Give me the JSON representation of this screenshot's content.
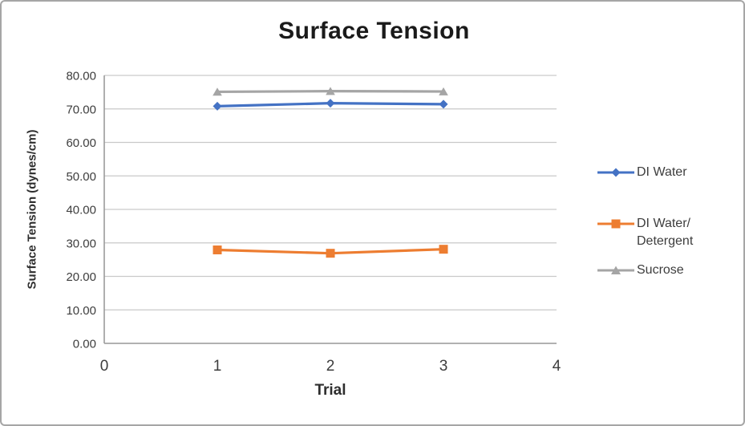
{
  "chart_data": {
    "type": "line",
    "title": "Surface Tension",
    "xlabel": "Trial",
    "ylabel": "Surface Tension (dynes/cm)",
    "xlim": [
      0,
      4
    ],
    "ylim": [
      0,
      80
    ],
    "grid": "horizontal",
    "legend_position": "right",
    "x": [
      1,
      2,
      3
    ],
    "x_ticks": [
      {
        "v": 0,
        "label": "0"
      },
      {
        "v": 1,
        "label": "1"
      },
      {
        "v": 2,
        "label": "2"
      },
      {
        "v": 3,
        "label": "3"
      },
      {
        "v": 4,
        "label": "4"
      }
    ],
    "y_ticks": [
      {
        "v": 0,
        "label": "0.00"
      },
      {
        "v": 10,
        "label": "10.00"
      },
      {
        "v": 20,
        "label": "20.00"
      },
      {
        "v": 30,
        "label": "30.00"
      },
      {
        "v": 40,
        "label": "40.00"
      },
      {
        "v": 50,
        "label": "50.00"
      },
      {
        "v": 60,
        "label": "60.00"
      },
      {
        "v": 70,
        "label": "70.00"
      },
      {
        "v": 80,
        "label": "80.00"
      }
    ],
    "series": [
      {
        "name": "DI Water",
        "legend_lines": [
          "DI Water"
        ],
        "marker": "diamond",
        "color": "#4472C4",
        "values": [
          70.8,
          71.7,
          71.4
        ]
      },
      {
        "name": "DI Water/Detergent",
        "legend_lines": [
          "DI Water/",
          "Detergent"
        ],
        "marker": "square",
        "color": "#ED7D31",
        "values": [
          27.9,
          26.9,
          28.1
        ]
      },
      {
        "name": "Sucrose",
        "legend_lines": [
          "Sucrose"
        ],
        "marker": "triangle",
        "color": "#A5A5A5",
        "values": [
          75.1,
          75.3,
          75.2
        ]
      }
    ]
  },
  "colors": {
    "gridline": "#c9c9c9",
    "axis": "#9b9b9b",
    "tick_text": "#3d3d3d",
    "title_text": "#1a1a1a",
    "chart_border": "#a6a6a6"
  }
}
